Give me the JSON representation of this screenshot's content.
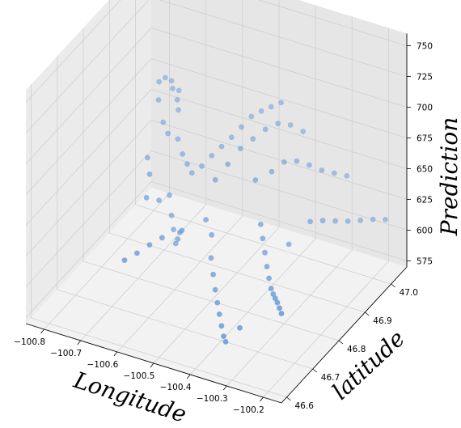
{
  "chart_data": {
    "type": "scatter",
    "title": "",
    "xlabel": "Longitude",
    "ylabel": "latitude",
    "zlabel": "Prediction",
    "x_ticks": [
      "−100.8",
      "−100.7",
      "−100.6",
      "−100.5",
      "−100.4",
      "−100.3",
      "−100.2"
    ],
    "y_ticks": [
      "46.6",
      "46.7",
      "46.8",
      "46.9",
      "47.0"
    ],
    "z_ticks": [
      "575",
      "600",
      "625",
      "650",
      "675",
      "700",
      "725",
      "750"
    ],
    "xlim": [
      -100.85,
      -100.15
    ],
    "ylim": [
      46.58,
      47.06
    ],
    "zlim": [
      570,
      760
    ],
    "grid": true,
    "point_color": "#6a9ad6",
    "series": [
      {
        "values_note": "3D scatter of Prediction over a Longitude/latitude grid (sample of estimated points)",
        "points": [
          [
            -100.8,
            47.02,
            670
          ],
          [
            -100.79,
            47.03,
            672
          ],
          [
            -100.78,
            47.04,
            668
          ],
          [
            -100.77,
            47.03,
            665
          ],
          [
            -100.76,
            47.04,
            662
          ],
          [
            -100.75,
            47.02,
            660
          ],
          [
            -100.74,
            47.01,
            655
          ],
          [
            -100.78,
            46.99,
            664
          ],
          [
            -100.76,
            46.98,
            650
          ],
          [
            -100.74,
            46.97,
            645
          ],
          [
            -100.72,
            46.98,
            640
          ],
          [
            -100.7,
            46.97,
            632
          ],
          [
            -100.68,
            46.96,
            628
          ],
          [
            -100.66,
            46.95,
            625
          ],
          [
            -100.64,
            46.96,
            630
          ],
          [
            -100.62,
            46.97,
            638
          ],
          [
            -100.6,
            46.98,
            645
          ],
          [
            -100.58,
            46.99,
            652
          ],
          [
            -100.56,
            47.0,
            660
          ],
          [
            -100.54,
            47.01,
            668
          ],
          [
            -100.52,
            47.02,
            672
          ],
          [
            -100.5,
            47.03,
            675
          ],
          [
            -100.48,
            47.04,
            678
          ],
          [
            -100.7,
            46.92,
            610
          ],
          [
            -100.68,
            46.9,
            600
          ],
          [
            -100.66,
            46.88,
            595
          ],
          [
            -100.64,
            46.86,
            590
          ],
          [
            -100.62,
            46.84,
            600
          ],
          [
            -100.6,
            46.82,
            612
          ],
          [
            -100.58,
            46.8,
            620
          ],
          [
            -100.56,
            46.9,
            640
          ],
          [
            -100.54,
            46.92,
            650
          ],
          [
            -100.52,
            46.94,
            660
          ],
          [
            -100.5,
            46.96,
            665
          ],
          [
            -100.48,
            46.98,
            670
          ],
          [
            -100.46,
            47.0,
            672
          ],
          [
            -100.44,
            47.02,
            668
          ],
          [
            -100.42,
            47.04,
            660
          ],
          [
            -100.55,
            46.85,
            620
          ],
          [
            -100.52,
            46.83,
            615
          ],
          [
            -100.5,
            46.8,
            605
          ],
          [
            -100.48,
            46.78,
            598
          ],
          [
            -100.46,
            46.76,
            592
          ],
          [
            -100.44,
            46.74,
            588
          ],
          [
            -100.42,
            46.72,
            585
          ],
          [
            -100.4,
            46.7,
            582
          ],
          [
            -100.38,
            46.68,
            580
          ],
          [
            -100.36,
            46.66,
            582
          ],
          [
            -100.45,
            46.9,
            650
          ],
          [
            -100.42,
            46.92,
            655
          ],
          [
            -100.4,
            46.94,
            660
          ],
          [
            -100.38,
            46.96,
            658
          ],
          [
            -100.36,
            46.98,
            652
          ],
          [
            -100.34,
            47.0,
            645
          ],
          [
            -100.32,
            47.02,
            640
          ],
          [
            -100.3,
            47.04,
            635
          ],
          [
            -100.4,
            46.85,
            630
          ],
          [
            -100.38,
            46.83,
            625
          ],
          [
            -100.36,
            46.81,
            620
          ],
          [
            -100.34,
            46.79,
            615
          ],
          [
            -100.32,
            46.77,
            612
          ],
          [
            -100.3,
            46.75,
            610
          ],
          [
            -100.28,
            46.73,
            612
          ],
          [
            -100.26,
            46.71,
            615
          ],
          [
            -100.24,
            46.69,
            618
          ],
          [
            -100.22,
            46.67,
            620
          ],
          [
            -100.2,
            46.65,
            622
          ],
          [
            -100.3,
            46.9,
            630
          ],
          [
            -100.28,
            46.92,
            628
          ],
          [
            -100.26,
            46.94,
            625
          ],
          [
            -100.24,
            46.96,
            622
          ],
          [
            -100.22,
            46.98,
            620
          ],
          [
            -100.2,
            47.0,
            618
          ],
          [
            -100.18,
            47.02,
            615
          ],
          [
            -100.33,
            46.86,
            618
          ],
          [
            -100.35,
            46.7,
            585
          ],
          [
            -100.62,
            46.78,
            615
          ],
          [
            -100.64,
            46.76,
            612
          ],
          [
            -100.66,
            46.74,
            608
          ],
          [
            -100.68,
            46.72,
            605
          ],
          [
            -100.7,
            46.88,
            615
          ],
          [
            -100.72,
            46.86,
            620
          ],
          [
            -100.74,
            46.9,
            628
          ],
          [
            -100.76,
            46.92,
            635
          ]
        ]
      }
    ]
  }
}
